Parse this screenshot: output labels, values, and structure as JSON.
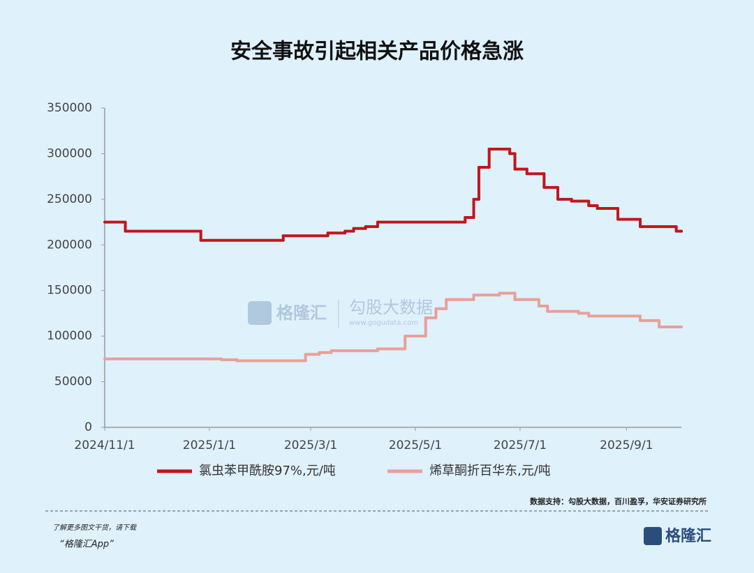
{
  "chart_data": {
    "type": "line",
    "step": "post",
    "title": "安全事故引起相关产品价格急涨",
    "xlim": [
      "2024/11/1",
      "2025/10/3"
    ],
    "xticks": [
      "2024/11/1",
      "2025/1/1",
      "2025/3/1",
      "2025/5/1",
      "2025/7/1",
      "2025/9/1"
    ],
    "ylim": [
      0,
      350000
    ],
    "yticks": [
      0,
      50000,
      100000,
      150000,
      200000,
      250000,
      300000,
      350000
    ],
    "series": [
      {
        "name": "氯虫苯甲酰胺97%,元/吨",
        "color": "#c0161c",
        "x": [
          "2024/11/1",
          "2024/11/13",
          "2024/12/27",
          "2025/2/13",
          "2025/3/11",
          "2025/3/21",
          "2025/3/26",
          "2025/4/2",
          "2025/4/9",
          "2025/5/30",
          "2025/6/4",
          "2025/6/7",
          "2025/6/13",
          "2025/6/25",
          "2025/6/28",
          "2025/7/5",
          "2025/7/15",
          "2025/7/23",
          "2025/7/31",
          "2025/8/10",
          "2025/8/15",
          "2025/8/27",
          "2025/9/9",
          "2025/9/30",
          "2025/10/3"
        ],
        "values": [
          225000,
          215000,
          205000,
          210000,
          213000,
          215000,
          218000,
          220000,
          225000,
          230000,
          250000,
          285000,
          305000,
          300000,
          283000,
          278000,
          263000,
          250000,
          248000,
          243000,
          240000,
          228000,
          220000,
          215000,
          215000
        ]
      },
      {
        "name": "烯草酮折百华东,元/吨",
        "color": "#e8a09a",
        "x": [
          "2024/11/1",
          "2025/1/8",
          "2025/1/17",
          "2025/2/26",
          "2025/3/6",
          "2025/3/13",
          "2025/4/9",
          "2025/4/25",
          "2025/5/7",
          "2025/5/13",
          "2025/5/19",
          "2025/6/4",
          "2025/6/19",
          "2025/6/28",
          "2025/7/12",
          "2025/7/17",
          "2025/8/4",
          "2025/8/10",
          "2025/9/9",
          "2025/9/20",
          "2025/10/3"
        ],
        "values": [
          75000,
          74000,
          73000,
          80000,
          82000,
          84000,
          86000,
          100000,
          120000,
          130000,
          140000,
          145000,
          147000,
          140000,
          133000,
          127000,
          125000,
          122000,
          117000,
          110000,
          110000
        ]
      }
    ],
    "source": "数据支持：勾股大数据，百川盈孚，华安证券研究所"
  },
  "footer": {
    "line1": "了解更多图文干货，请下载",
    "line2": "“格隆汇App”",
    "logo": "格隆汇"
  },
  "watermark": {
    "brand": "格隆汇",
    "name": "勾股大数据",
    "url": "www.gogudata.com"
  }
}
